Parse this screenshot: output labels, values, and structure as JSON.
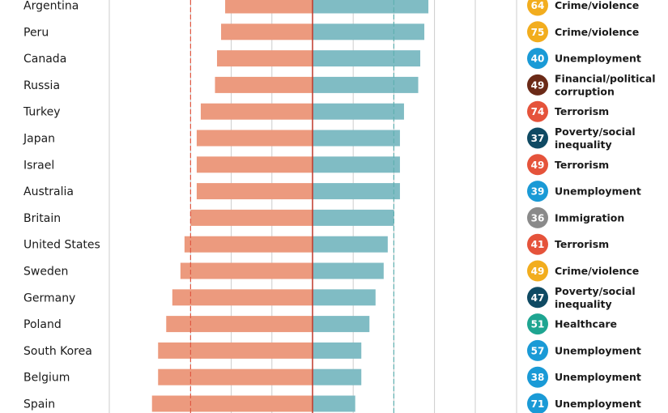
{
  "chart_data": {
    "type": "bar",
    "layout": "diverging",
    "colors": {
      "left_bar": "#ec9a7e",
      "right_bar": "#80bcc4",
      "axis": "#c0392b",
      "grid": "#cccccc",
      "left_avg_line": "#e05a44",
      "right_avg_line": "#5fb0b0"
    },
    "averages": {
      "left": 30,
      "right": 20
    },
    "categories": [
      "Argentina",
      "Peru",
      "Canada",
      "Russia",
      "Turkey",
      "Japan",
      "Israel",
      "Australia",
      "Britain",
      "United States",
      "Sweden",
      "Germany",
      "Poland",
      "South Korea",
      "Belgium",
      "Spain"
    ],
    "series": [
      {
        "values": [
          21.5,
          22.5,
          23.5,
          24,
          27.5,
          28.5,
          28.5,
          28.5,
          30,
          31.5,
          32.5,
          34.5,
          36,
          38,
          38,
          39.5
        ]
      },
      {
        "values": [
          28.5,
          27.5,
          26.5,
          26,
          22.5,
          21.5,
          21.5,
          21.5,
          20,
          18.5,
          17.5,
          15.5,
          14,
          12,
          12,
          10.5
        ]
      }
    ],
    "top_issue": [
      {
        "value": "64",
        "label": [
          "Crime/violence"
        ],
        "color": "#f2ad1e"
      },
      {
        "value": "75",
        "label": [
          "Crime/violence"
        ],
        "color": "#f2ad1e"
      },
      {
        "value": "40",
        "label": [
          "Unemployment"
        ],
        "color": "#1a9ad6"
      },
      {
        "value": "49",
        "label": [
          "Financial/political",
          "corruption"
        ],
        "color": "#6b2a17"
      },
      {
        "value": "74",
        "label": [
          "Terrorism"
        ],
        "color": "#e5533b"
      },
      {
        "value": "37",
        "label": [
          "Poverty/social",
          "inequality"
        ],
        "color": "#0f4a63"
      },
      {
        "value": "49",
        "label": [
          "Terrorism"
        ],
        "color": "#e5533b"
      },
      {
        "value": "39",
        "label": [
          "Unemployment"
        ],
        "color": "#1a9ad6"
      },
      {
        "value": "36",
        "label": [
          "Immigration"
        ],
        "color": "#8a8a8a"
      },
      {
        "value": "41",
        "label": [
          "Terrorism"
        ],
        "color": "#e5533b"
      },
      {
        "value": "49",
        "label": [
          "Crime/violence"
        ],
        "color": "#f2ad1e"
      },
      {
        "value": "47",
        "label": [
          "Poverty/social",
          "inequality"
        ],
        "color": "#0f4a63"
      },
      {
        "value": "51",
        "label": [
          "Healthcare"
        ],
        "color": "#1ea591"
      },
      {
        "value": "57",
        "label": [
          "Unemployment"
        ],
        "color": "#1a9ad6"
      },
      {
        "value": "38",
        "label": [
          "Unemployment"
        ],
        "color": "#1a9ad6"
      },
      {
        "value": "71",
        "label": [
          "Unemployment"
        ],
        "color": "#1a9ad6"
      }
    ]
  }
}
